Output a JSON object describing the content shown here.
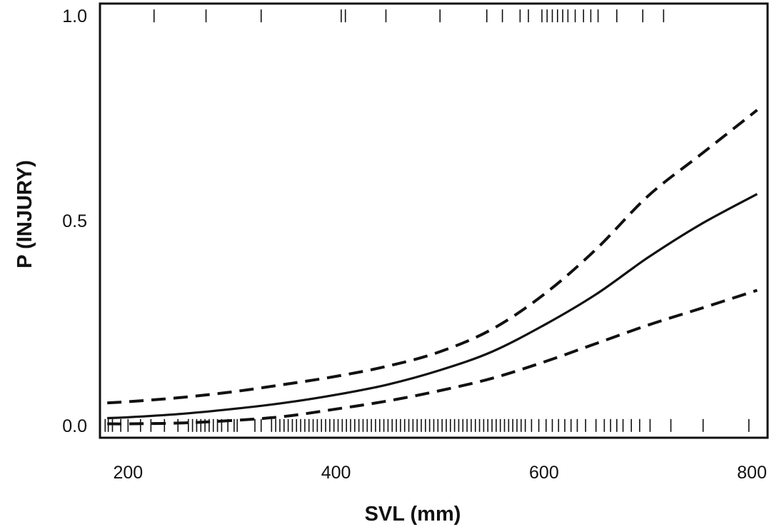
{
  "chart_data": {
    "type": "line",
    "title": "",
    "xlabel": "SVL (mm)",
    "ylabel": "P (INJURY)",
    "xlim": [
      173,
      815
    ],
    "ylim": [
      -0.03,
      1.03
    ],
    "grid": false,
    "legend": "none",
    "x_ticks": [
      200,
      400,
      600,
      800
    ],
    "x_tick_labels": [
      "200",
      "400",
      "600",
      "800"
    ],
    "y_ticks": [
      0.0,
      0.5,
      1.0
    ],
    "y_tick_labels": [
      "0.0",
      "0.5",
      "1.0"
    ],
    "series": [
      {
        "style": "solid",
        "x": [
          180,
          200,
          250,
          300,
          350,
          400,
          450,
          500,
          550,
          600,
          650,
          700,
          750,
          805
        ],
        "y": [
          0.018,
          0.02,
          0.028,
          0.04,
          0.055,
          0.075,
          0.1,
          0.135,
          0.18,
          0.245,
          0.32,
          0.41,
          0.49,
          0.565
        ]
      },
      {
        "style": "dashed",
        "x": [
          180,
          200,
          250,
          300,
          350,
          400,
          450,
          500,
          550,
          600,
          650,
          700,
          750,
          805
        ],
        "y": [
          0.055,
          0.058,
          0.068,
          0.082,
          0.1,
          0.12,
          0.145,
          0.18,
          0.235,
          0.32,
          0.43,
          0.56,
          0.66,
          0.77
        ]
      },
      {
        "style": "dashed",
        "x": [
          180,
          200,
          250,
          300,
          350,
          400,
          450,
          500,
          550,
          600,
          650,
          700,
          750,
          805
        ],
        "y": [
          0.004,
          0.004,
          0.006,
          0.012,
          0.022,
          0.04,
          0.06,
          0.085,
          0.115,
          0.155,
          0.2,
          0.245,
          0.285,
          0.33
        ]
      }
    ],
    "rug_injured_x": [
      225,
      275,
      328,
      405,
      409,
      448,
      500,
      545,
      560,
      577,
      585,
      598,
      603,
      608,
      613,
      618,
      623,
      630,
      638,
      645,
      652,
      670,
      695,
      715
    ],
    "rug_uninjured_x": [
      178,
      181,
      185,
      193,
      200,
      212,
      222,
      235,
      248,
      258,
      262,
      266,
      270,
      274,
      278,
      282,
      286,
      290,
      296,
      302,
      305,
      322,
      328,
      338,
      342,
      346,
      350,
      354,
      358,
      362,
      366,
      370,
      374,
      378,
      382,
      386,
      390,
      394,
      398,
      402,
      406,
      410,
      414,
      418,
      422,
      426,
      430,
      434,
      438,
      442,
      446,
      450,
      454,
      458,
      462,
      466,
      470,
      474,
      478,
      482,
      486,
      490,
      494,
      498,
      502,
      506,
      510,
      514,
      518,
      522,
      526,
      530,
      534,
      538,
      542,
      546,
      550,
      554,
      558,
      562,
      566,
      570,
      574,
      578,
      582,
      588,
      595,
      602,
      608,
      614,
      620,
      626,
      632,
      640,
      650,
      658,
      664,
      670,
      676,
      684,
      692,
      702,
      722,
      753,
      797
    ]
  }
}
